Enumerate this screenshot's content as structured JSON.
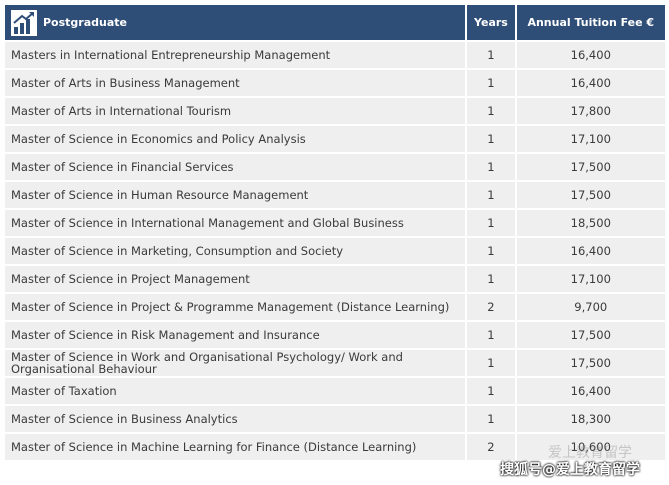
{
  "table": {
    "header": [
      "Postgraduate",
      "Years",
      "Annual Tuition Fee €"
    ],
    "rows": [
      [
        "Masters in International Entrepreneurship Management",
        "1",
        "16,400"
      ],
      [
        "Master of Arts in Business Management",
        "1",
        "16,400"
      ],
      [
        "Master of Arts in International Tourism",
        "1",
        "17,800"
      ],
      [
        "Master of Science in Economics and Policy Analysis",
        "1",
        "17,100"
      ],
      [
        "Master of Science in Financial Services",
        "1",
        "17,500"
      ],
      [
        "Master of Science in Human Resource Management",
        "1",
        "17,500"
      ],
      [
        "Master of Science in International Management and Global Business",
        "1",
        "18,500"
      ],
      [
        "Master of Science in Marketing, Consumption and Society",
        "1",
        "16,400"
      ],
      [
        "Master of Science in Project Management",
        "1",
        "17,100"
      ],
      [
        "Master of Science in Project & Programme Management (Distance Learning)",
        "2",
        "9,700"
      ],
      [
        "Master of Science in Risk Management and Insurance",
        "1",
        "17,500"
      ],
      [
        "Master of Science in Work and Organisational Psychology/ Work and Organisational Behaviour",
        "1",
        "17,500"
      ],
      [
        "Master of Taxation",
        "1",
        "16,400"
      ],
      [
        "Master of Science in Business Analytics",
        "1",
        "18,300"
      ],
      [
        "Master of Science in Machine Learning for Finance (Distance Learning)",
        "2",
        "10,600"
      ]
    ]
  },
  "watermark": {
    "faint": "爱上教育留学",
    "main": "搜狐号@爱上教育留学"
  }
}
